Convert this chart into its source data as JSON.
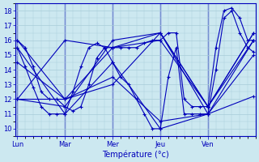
{
  "background_color": "#cce8f0",
  "grid_color": "#a8ccd8",
  "line_color": "#0000bb",
  "ylim": [
    9.5,
    18.5
  ],
  "yticks": [
    10,
    11,
    12,
    13,
    14,
    15,
    16,
    17,
    18
  ],
  "day_labels": [
    "Lun",
    "Mar",
    "Mer",
    "Jeu",
    "Ven"
  ],
  "day_positions": [
    0,
    48,
    96,
    144,
    192
  ],
  "x_max": 238,
  "xlabel": "Température (°c)",
  "sparse_series": [
    {
      "points": [
        [
          0,
          16.0
        ],
        [
          8,
          15.5
        ],
        [
          16,
          14.2
        ],
        [
          24,
          12.5
        ],
        [
          32,
          12.0
        ],
        [
          40,
          12.0
        ],
        [
          48,
          11.5
        ],
        [
          56,
          11.2
        ],
        [
          64,
          11.5
        ],
        [
          72,
          13.0
        ],
        [
          80,
          14.8
        ],
        [
          88,
          15.5
        ],
        [
          96,
          15.5
        ],
        [
          104,
          15.5
        ],
        [
          112,
          15.5
        ],
        [
          120,
          15.5
        ],
        [
          128,
          15.8
        ],
        [
          136,
          16.0
        ],
        [
          144,
          16.0
        ],
        [
          152,
          16.5
        ],
        [
          160,
          16.5
        ],
        [
          168,
          12.0
        ],
        [
          176,
          11.5
        ],
        [
          184,
          11.5
        ],
        [
          192,
          11.5
        ],
        [
          200,
          15.5
        ],
        [
          208,
          18.0
        ],
        [
          216,
          18.2
        ],
        [
          224,
          17.5
        ],
        [
          232,
          16.0
        ],
        [
          238,
          16.0
        ]
      ]
    },
    {
      "points": [
        [
          0,
          15.5
        ],
        [
          8,
          14.2
        ],
        [
          16,
          12.8
        ],
        [
          24,
          11.5
        ],
        [
          32,
          11.0
        ],
        [
          40,
          11.0
        ],
        [
          48,
          11.0
        ],
        [
          56,
          12.5
        ],
        [
          64,
          14.2
        ],
        [
          72,
          15.5
        ],
        [
          80,
          15.8
        ],
        [
          88,
          15.5
        ],
        [
          96,
          14.5
        ],
        [
          104,
          13.5
        ],
        [
          112,
          13.0
        ],
        [
          120,
          12.0
        ],
        [
          128,
          11.0
        ],
        [
          136,
          10.0
        ],
        [
          144,
          10.0
        ],
        [
          152,
          13.5
        ],
        [
          160,
          15.5
        ],
        [
          168,
          11.0
        ],
        [
          176,
          11.0
        ],
        [
          184,
          11.0
        ],
        [
          192,
          11.0
        ],
        [
          200,
          14.0
        ],
        [
          208,
          17.5
        ],
        [
          216,
          18.0
        ],
        [
          224,
          16.5
        ],
        [
          232,
          15.5
        ],
        [
          238,
          15.2
        ]
      ]
    },
    {
      "points": [
        [
          0,
          16.0
        ],
        [
          48,
          12.0
        ],
        [
          96,
          15.5
        ],
        [
          144,
          16.0
        ],
        [
          192,
          11.5
        ],
        [
          238,
          16.5
        ]
      ]
    },
    {
      "points": [
        [
          0,
          15.5
        ],
        [
          48,
          11.0
        ],
        [
          96,
          14.5
        ],
        [
          144,
          10.0
        ],
        [
          192,
          11.0
        ],
        [
          238,
          15.0
        ]
      ]
    },
    {
      "points": [
        [
          0,
          14.5
        ],
        [
          48,
          12.0
        ],
        [
          96,
          13.5
        ],
        [
          144,
          10.5
        ],
        [
          192,
          11.0
        ],
        [
          238,
          12.2
        ]
      ]
    },
    {
      "points": [
        [
          0,
          12.0
        ],
        [
          48,
          16.0
        ],
        [
          96,
          15.5
        ],
        [
          144,
          16.5
        ],
        [
          192,
          11.5
        ],
        [
          238,
          16.5
        ]
      ]
    },
    {
      "points": [
        [
          0,
          12.0
        ],
        [
          48,
          11.5
        ],
        [
          96,
          16.0
        ],
        [
          144,
          16.5
        ],
        [
          192,
          11.0
        ],
        [
          238,
          16.0
        ]
      ]
    },
    {
      "points": [
        [
          0,
          12.0
        ],
        [
          48,
          12.0
        ],
        [
          96,
          13.0
        ],
        [
          144,
          16.5
        ],
        [
          192,
          11.5
        ],
        [
          238,
          16.0
        ]
      ]
    }
  ]
}
